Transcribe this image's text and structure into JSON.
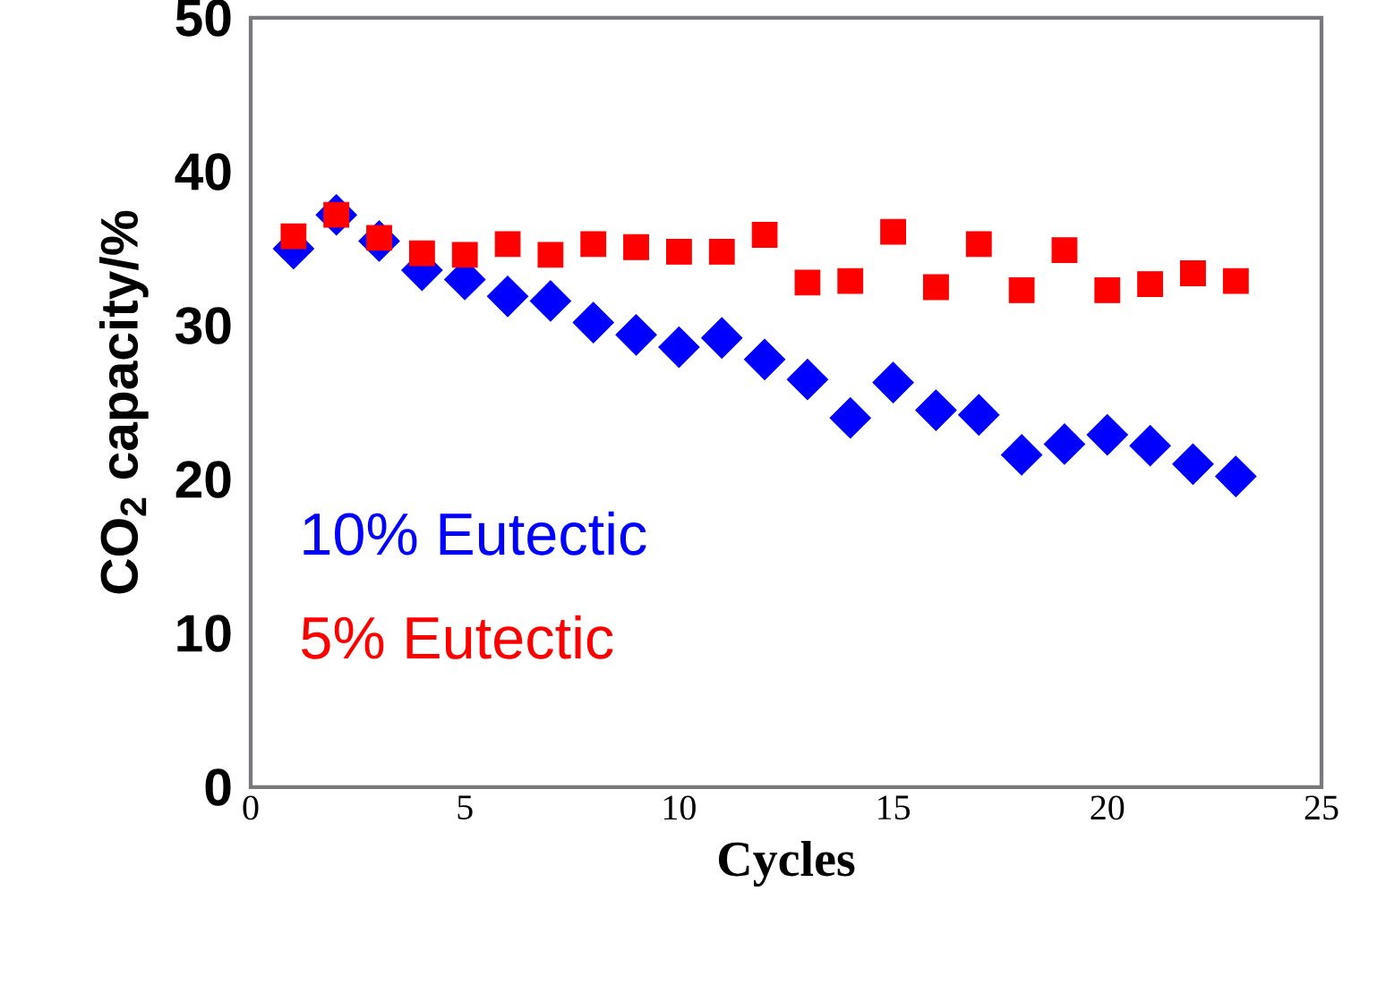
{
  "chart_data": {
    "type": "scatter",
    "xlabel": "Cycles",
    "ylabel": "CO$_{2}$ capacity/%",
    "x": [
      1,
      2,
      3,
      4,
      5,
      6,
      7,
      8,
      9,
      10,
      11,
      12,
      13,
      14,
      15,
      16,
      17,
      18,
      19,
      20,
      21,
      22,
      23
    ],
    "series": [
      {
        "name": "10% Eutectic",
        "color": "#0000ff",
        "marker": "diamond",
        "values": [
          35.0,
          37.2,
          35.5,
          33.6,
          33.0,
          31.9,
          31.6,
          30.2,
          29.4,
          28.6,
          29.2,
          27.8,
          26.5,
          24.0,
          26.3,
          24.5,
          24.2,
          21.6,
          22.3,
          22.9,
          22.2,
          21.0,
          20.2
        ]
      },
      {
        "name": "5% Eutectic",
        "color": "#ff0000",
        "marker": "square",
        "values": [
          35.8,
          37.2,
          35.7,
          34.7,
          34.6,
          35.3,
          34.6,
          35.3,
          35.1,
          34.8,
          34.8,
          35.9,
          32.8,
          32.9,
          36.1,
          32.5,
          35.3,
          32.3,
          34.9,
          32.3,
          32.7,
          33.4,
          32.9
        ]
      }
    ],
    "xlim": [
      0,
      25
    ],
    "ylim": [
      0,
      50
    ],
    "xticks": [
      0,
      5,
      10,
      15,
      20,
      25
    ],
    "yticks": [
      0,
      10,
      20,
      30,
      40,
      50
    ],
    "legend": "bottom left",
    "grid": false
  }
}
